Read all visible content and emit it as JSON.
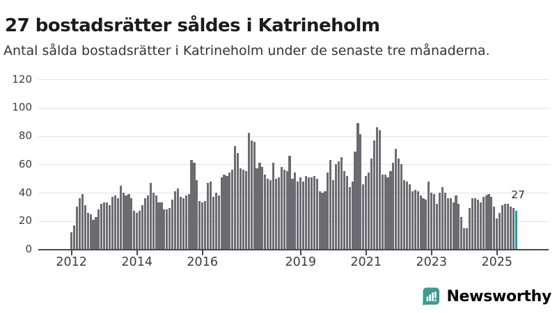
{
  "header": {
    "title": "27 bostadsrätter såldes i Katrineholm",
    "subtitle": "Antal sålda bostadsrätter i Katrineholm under de senaste tre månaderna."
  },
  "chart_data": {
    "type": "bar",
    "title": "27 bostadsrätter såldes i Katrineholm",
    "subtitle": "Antal sålda bostadsrätter i Katrineholm under de senaste tre månaderna.",
    "frequency": "monthly",
    "x_start_month": "2012-01",
    "x_end_month": "2025-08",
    "ylim": [
      0,
      120
    ],
    "yticks": [
      0,
      20,
      40,
      60,
      80,
      100,
      120
    ],
    "grid": "horizontal",
    "legend": "none",
    "xticks": [
      {
        "label": "2012",
        "month_index": 0
      },
      {
        "label": "2014",
        "month_index": 24
      },
      {
        "label": "2016",
        "month_index": 48
      },
      {
        "label": "2019",
        "month_index": 84
      },
      {
        "label": "2021",
        "month_index": 108
      },
      {
        "label": "2023",
        "month_index": 132
      },
      {
        "label": "2025",
        "month_index": 156
      }
    ],
    "bar_color": "#6b6b71",
    "highlight_color": "#12a29b",
    "highlight_index": 163,
    "highlight_label": "27",
    "values": [
      12,
      17,
      30,
      36,
      39,
      31,
      26,
      25,
      21,
      23,
      28,
      32,
      33,
      33,
      31,
      37,
      38,
      36,
      45,
      40,
      38,
      39,
      36,
      27,
      26,
      27,
      31,
      36,
      38,
      47,
      40,
      38,
      33,
      33,
      28,
      28,
      29,
      35,
      41,
      43,
      37,
      36,
      38,
      39,
      63,
      61,
      49,
      34,
      33,
      34,
      47,
      48,
      37,
      40,
      38,
      51,
      53,
      52,
      54,
      56,
      73,
      68,
      57,
      56,
      55,
      82,
      77,
      76,
      57,
      61,
      58,
      53,
      50,
      49,
      61,
      50,
      51,
      58,
      56,
      55,
      66,
      50,
      54,
      48,
      51,
      48,
      52,
      51,
      51,
      52,
      50,
      41,
      40,
      41,
      54,
      63,
      49,
      60,
      62,
      65,
      55,
      52,
      44,
      48,
      69,
      89,
      81,
      46,
      52,
      54,
      64,
      77,
      86,
      84,
      53,
      53,
      51,
      55,
      61,
      71,
      64,
      60,
      49,
      48,
      46,
      41,
      42,
      41,
      38,
      36,
      35,
      48,
      40,
      39,
      32,
      40,
      44,
      40,
      36,
      36,
      33,
      38,
      32,
      23,
      15,
      15,
      29,
      36,
      36,
      35,
      33,
      37,
      38,
      39,
      37,
      30,
      22,
      26,
      31,
      32,
      32,
      30,
      29,
      27
    ]
  },
  "annotation": {
    "last_value_label": "27"
  },
  "branding": {
    "name": "Newsworthy",
    "color": "#3d9c93"
  },
  "colors": {
    "background": "#ffffff",
    "title": "#1c1c1c",
    "subtitle": "#343434",
    "axis_labels": "#3d3d3d",
    "gridline": "#e2e2e2",
    "axis_line": "#47474c",
    "bar": "#6b6b71",
    "highlight_bar": "#12a29b",
    "brand_teal": "#3d9c93"
  }
}
